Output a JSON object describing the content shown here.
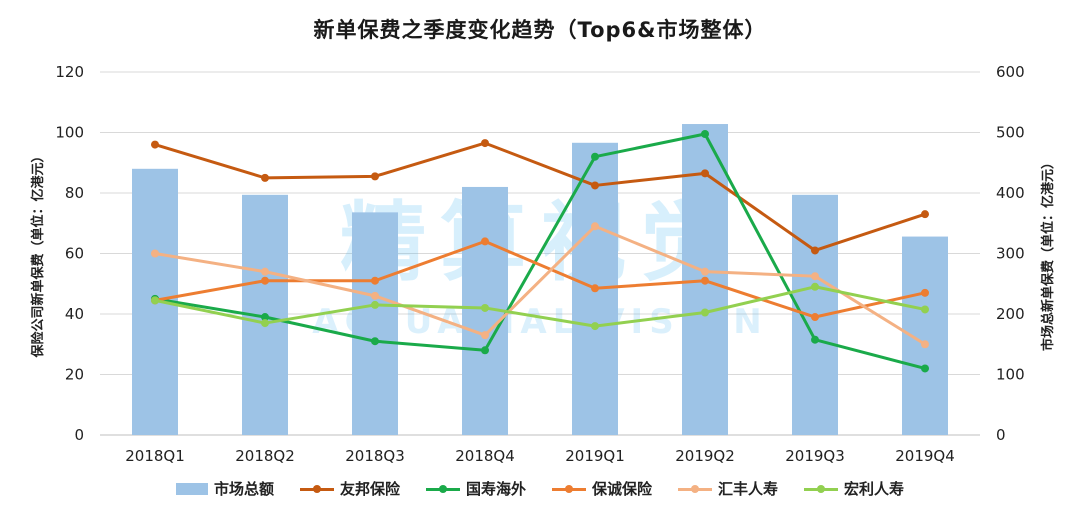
{
  "chart_data": {
    "type": "bar",
    "title": "新单保费之季度变化趋势（Top6&市场整体）",
    "watermark": {
      "cn": "精算视觉",
      "en": "ACTUARIAL VISION"
    },
    "categories": [
      "2018Q1",
      "2018Q2",
      "2018Q3",
      "2018Q4",
      "2019Q1",
      "2019Q2",
      "2019Q3",
      "2019Q4"
    ],
    "y_left": {
      "label": "保险公司新单保费（单位：亿港元）",
      "min": 0,
      "max": 120,
      "ticks": [
        "0",
        "20",
        "40",
        "60",
        "80",
        "100",
        "120"
      ]
    },
    "y_right": {
      "label": "市场总新单保费（单位：亿港元）",
      "min": 0,
      "max": 600,
      "ticks": [
        "0",
        "100",
        "200",
        "300",
        "400",
        "500",
        "600"
      ]
    },
    "bars": {
      "name": "市场总额",
      "axis": "right",
      "color": "#9dc3e6",
      "values": [
        440,
        397,
        368,
        410,
        483,
        514,
        397,
        328
      ]
    },
    "series": [
      {
        "name": "友邦保险",
        "axis": "left",
        "color": "#c55a11",
        "values": [
          96,
          85,
          85.5,
          96.5,
          82.5,
          86.5,
          61,
          73
        ]
      },
      {
        "name": "国寿海外",
        "axis": "left",
        "color": "#1aaa4a",
        "values": [
          45,
          39,
          31,
          28,
          92,
          99.5,
          31.5,
          22
        ]
      },
      {
        "name": "保诚保险",
        "axis": "left",
        "color": "#ed7d31",
        "values": [
          44.5,
          51,
          51,
          64,
          48.5,
          51,
          39,
          47
        ]
      },
      {
        "name": "汇丰人寿",
        "axis": "left",
        "color": "#f4b183",
        "values": [
          60,
          54,
          46,
          33,
          69,
          54,
          52.5,
          30
        ]
      },
      {
        "name": "宏利人寿",
        "axis": "left",
        "color": "#92d050",
        "values": [
          44.5,
          37,
          43,
          42,
          36,
          40.5,
          49,
          41.5
        ]
      }
    ],
    "legend_position": "bottom",
    "grid": true
  }
}
